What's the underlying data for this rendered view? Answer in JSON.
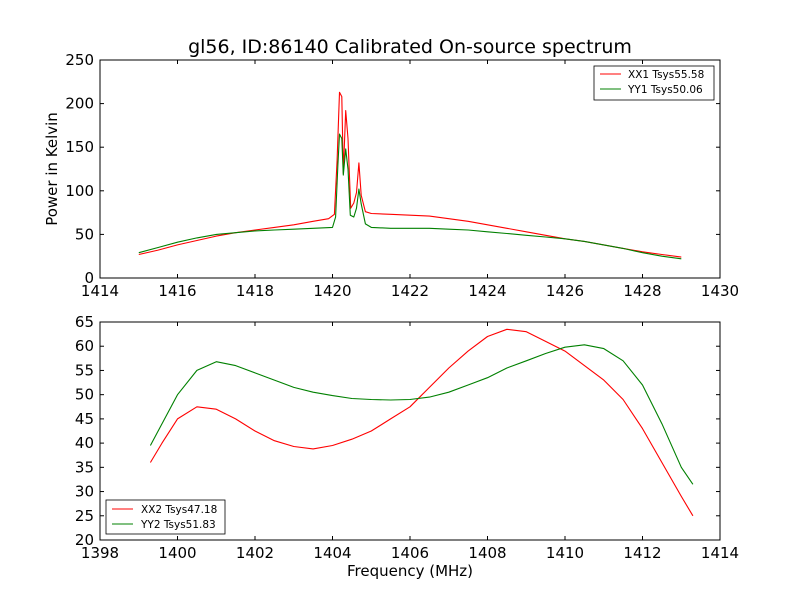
{
  "chart_data": [
    {
      "type": "line",
      "title": "gl56, ID:86140 Calibrated On-source spectrum",
      "xlabel": "",
      "ylabel": "Power in Kelvin",
      "xlim": [
        1414,
        1430
      ],
      "ylim": [
        0,
        250
      ],
      "xticks": [
        1414,
        1416,
        1418,
        1420,
        1422,
        1424,
        1426,
        1428,
        1430
      ],
      "yticks": [
        0,
        50,
        100,
        150,
        200,
        250
      ],
      "legend_position": "top-right",
      "series": [
        {
          "name": "XX1 Tsys55.58",
          "color": "#ff0000",
          "points": [
            [
              1415.0,
              27
            ],
            [
              1415.5,
              32
            ],
            [
              1416.0,
              38
            ],
            [
              1416.5,
              43
            ],
            [
              1417.0,
              48
            ],
            [
              1417.5,
              52
            ],
            [
              1418.0,
              55
            ],
            [
              1418.5,
              58
            ],
            [
              1419.0,
              61
            ],
            [
              1419.5,
              65
            ],
            [
              1419.9,
              68
            ],
            [
              1420.05,
              73
            ],
            [
              1420.12,
              135
            ],
            [
              1420.18,
              213
            ],
            [
              1420.24,
              208
            ],
            [
              1420.28,
              120
            ],
            [
              1420.34,
              192
            ],
            [
              1420.4,
              160
            ],
            [
              1420.47,
              80
            ],
            [
              1420.55,
              86
            ],
            [
              1420.62,
              98
            ],
            [
              1420.68,
              132
            ],
            [
              1420.74,
              95
            ],
            [
              1420.85,
              76
            ],
            [
              1421.0,
              74
            ],
            [
              1421.5,
              73
            ],
            [
              1422.0,
              72
            ],
            [
              1422.5,
              71
            ],
            [
              1423.0,
              68
            ],
            [
              1423.5,
              65
            ],
            [
              1424.0,
              61
            ],
            [
              1424.5,
              57
            ],
            [
              1425.0,
              53
            ],
            [
              1425.5,
              49
            ],
            [
              1426.0,
              45
            ],
            [
              1426.5,
              42
            ],
            [
              1427.0,
              38
            ],
            [
              1427.5,
              34
            ],
            [
              1428.0,
              30
            ],
            [
              1428.5,
              27
            ],
            [
              1429.0,
              24
            ]
          ]
        },
        {
          "name": "YY1 Tsys50.06",
          "color": "#008000",
          "points": [
            [
              1415.0,
              29
            ],
            [
              1415.5,
              35
            ],
            [
              1416.0,
              41
            ],
            [
              1416.5,
              46
            ],
            [
              1417.0,
              50
            ],
            [
              1417.5,
              52
            ],
            [
              1418.0,
              54
            ],
            [
              1418.5,
              55
            ],
            [
              1419.0,
              56
            ],
            [
              1419.5,
              57
            ],
            [
              1420.0,
              58
            ],
            [
              1420.08,
              70
            ],
            [
              1420.14,
              130
            ],
            [
              1420.18,
              165
            ],
            [
              1420.24,
              160
            ],
            [
              1420.28,
              118
            ],
            [
              1420.34,
              148
            ],
            [
              1420.4,
              125
            ],
            [
              1420.46,
              72
            ],
            [
              1420.55,
              70
            ],
            [
              1420.62,
              80
            ],
            [
              1420.68,
              102
            ],
            [
              1420.74,
              85
            ],
            [
              1420.85,
              62
            ],
            [
              1421.0,
              58
            ],
            [
              1421.5,
              57
            ],
            [
              1422.0,
              57
            ],
            [
              1422.5,
              57
            ],
            [
              1423.0,
              56
            ],
            [
              1423.5,
              55
            ],
            [
              1424.0,
              53
            ],
            [
              1424.5,
              51
            ],
            [
              1425.0,
              49
            ],
            [
              1425.5,
              47
            ],
            [
              1426.0,
              45
            ],
            [
              1426.5,
              42
            ],
            [
              1427.0,
              38
            ],
            [
              1427.5,
              34
            ],
            [
              1428.0,
              29
            ],
            [
              1428.5,
              25
            ],
            [
              1429.0,
              22
            ]
          ]
        }
      ]
    },
    {
      "type": "line",
      "title": "",
      "xlabel": "Frequency (MHz)",
      "ylabel": "",
      "xlim": [
        1398,
        1414
      ],
      "ylim": [
        20,
        65
      ],
      "xticks": [
        1398,
        1400,
        1402,
        1404,
        1406,
        1408,
        1410,
        1412,
        1414
      ],
      "yticks": [
        20,
        25,
        30,
        35,
        40,
        45,
        50,
        55,
        60,
        65
      ],
      "legend_position": "bottom-left",
      "series": [
        {
          "name": "XX2 Tsys47.18",
          "color": "#ff0000",
          "points": [
            [
              1399.3,
              36
            ],
            [
              1399.6,
              40
            ],
            [
              1400.0,
              45
            ],
            [
              1400.5,
              47.5
            ],
            [
              1401.0,
              47
            ],
            [
              1401.5,
              45
            ],
            [
              1402.0,
              42.5
            ],
            [
              1402.5,
              40.5
            ],
            [
              1403.0,
              39.3
            ],
            [
              1403.5,
              38.8
            ],
            [
              1404.0,
              39.5
            ],
            [
              1404.5,
              40.8
            ],
            [
              1405.0,
              42.5
            ],
            [
              1405.5,
              45
            ],
            [
              1406.0,
              47.5
            ],
            [
              1406.5,
              51.5
            ],
            [
              1407.0,
              55.5
            ],
            [
              1407.5,
              59
            ],
            [
              1408.0,
              62
            ],
            [
              1408.5,
              63.5
            ],
            [
              1409.0,
              63
            ],
            [
              1409.5,
              61
            ],
            [
              1410.0,
              59
            ],
            [
              1410.5,
              56
            ],
            [
              1411.0,
              53
            ],
            [
              1411.5,
              49
            ],
            [
              1412.0,
              43
            ],
            [
              1412.5,
              36
            ],
            [
              1413.0,
              29
            ],
            [
              1413.3,
              25
            ]
          ]
        },
        {
          "name": "YY2 Tsys51.83",
          "color": "#008000",
          "points": [
            [
              1399.3,
              39.5
            ],
            [
              1399.6,
              44
            ],
            [
              1400.0,
              50
            ],
            [
              1400.5,
              55
            ],
            [
              1401.0,
              56.8
            ],
            [
              1401.5,
              56
            ],
            [
              1402.0,
              54.5
            ],
            [
              1402.5,
              53
            ],
            [
              1403.0,
              51.5
            ],
            [
              1403.5,
              50.5
            ],
            [
              1404.0,
              49.8
            ],
            [
              1404.5,
              49.2
            ],
            [
              1405.0,
              49
            ],
            [
              1405.5,
              48.9
            ],
            [
              1406.0,
              49
            ],
            [
              1406.5,
              49.5
            ],
            [
              1407.0,
              50.5
            ],
            [
              1407.5,
              52
            ],
            [
              1408.0,
              53.5
            ],
            [
              1408.5,
              55.5
            ],
            [
              1409.0,
              57
            ],
            [
              1409.5,
              58.5
            ],
            [
              1410.0,
              59.8
            ],
            [
              1410.5,
              60.3
            ],
            [
              1411.0,
              59.5
            ],
            [
              1411.5,
              57
            ],
            [
              1412.0,
              52
            ],
            [
              1412.5,
              44
            ],
            [
              1413.0,
              35
            ],
            [
              1413.3,
              31.5
            ]
          ]
        }
      ]
    }
  ]
}
